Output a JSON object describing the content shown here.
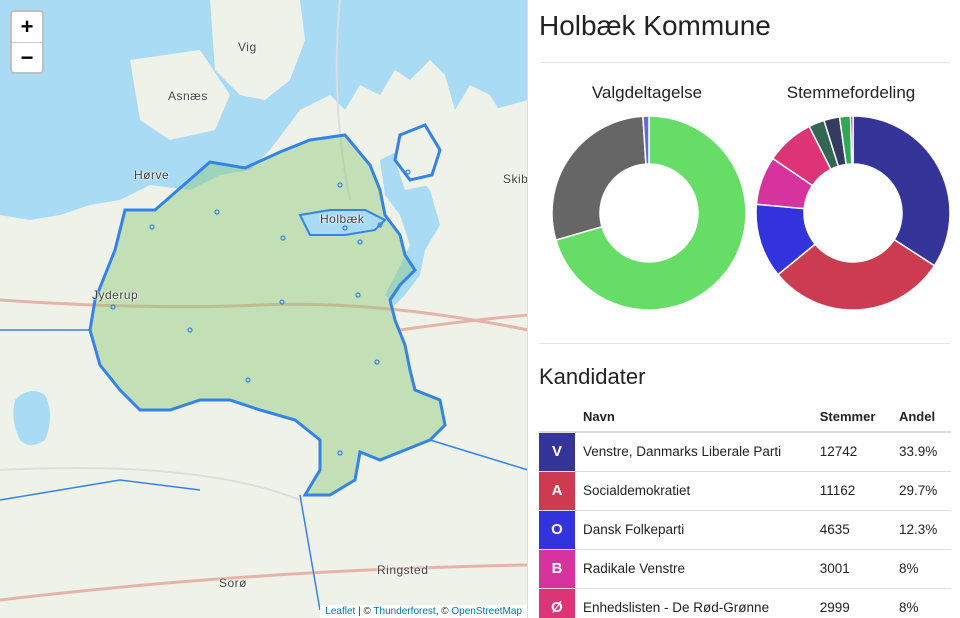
{
  "map": {
    "zoom_in": "+",
    "zoom_out": "−",
    "places": [
      "Vig",
      "Asnæs",
      "Hørve",
      "Holbæk",
      "Skib",
      "Jyderup",
      "Sorø",
      "Ringsted"
    ],
    "attribution": {
      "leaflet": "Leaflet",
      "sep1": " | © ",
      "thunderforest": "Thunderforest",
      "sep2": ", © ",
      "osm": "OpenStreetMap"
    },
    "colors": {
      "water": "#a9dbf5",
      "land": "#eef2e8",
      "region": "#3483e8",
      "region_fill": "#8ec77a"
    }
  },
  "panel": {
    "title": "Holbæk Kommune",
    "candidates_heading": "Kandidater"
  },
  "charts": [
    {
      "type": "pie",
      "title": "Valgdeltagelse",
      "slices": [
        {
          "value": 70.5,
          "color": "#66dd66"
        },
        {
          "value": 28.5,
          "color": "#666666"
        },
        {
          "value": 1.0,
          "color": "#6666dd"
        }
      ]
    },
    {
      "type": "pie",
      "title": "Stemmefordeling",
      "slices": [
        {
          "value": 33.9,
          "color": "#353599"
        },
        {
          "value": 29.7,
          "color": "#cc3b4f"
        },
        {
          "value": 12.3,
          "color": "#3333dd"
        },
        {
          "value": 8.0,
          "color": "#d6339f"
        },
        {
          "value": 8.0,
          "color": "#dd3377"
        },
        {
          "value": 2.6,
          "color": "#336655"
        },
        {
          "value": 2.6,
          "color": "#333d60"
        },
        {
          "value": 1.8,
          "color": "#2fa855"
        },
        {
          "value": 0.4,
          "color": "#444444"
        }
      ]
    }
  ],
  "table": {
    "headers": [
      "",
      "Navn",
      "Stemmer",
      "Andel"
    ],
    "rows": [
      {
        "letter": "V",
        "name": "Venstre, Danmarks Liberale Parti",
        "votes": "12742",
        "share": "33.9%",
        "color": "#353599"
      },
      {
        "letter": "A",
        "name": "Socialdemokratiet",
        "votes": "11162",
        "share": "29.7%",
        "color": "#cc3b4f"
      },
      {
        "letter": "O",
        "name": "Dansk Folkeparti",
        "votes": "4635",
        "share": "12.3%",
        "color": "#3333dd"
      },
      {
        "letter": "B",
        "name": "Radikale Venstre",
        "votes": "3001",
        "share": "8%",
        "color": "#d6339f"
      },
      {
        "letter": "Ø",
        "name": "Enhedslisten - De Rød-Grønne",
        "votes": "2999",
        "share": "8%",
        "color": "#dd3377"
      }
    ]
  }
}
